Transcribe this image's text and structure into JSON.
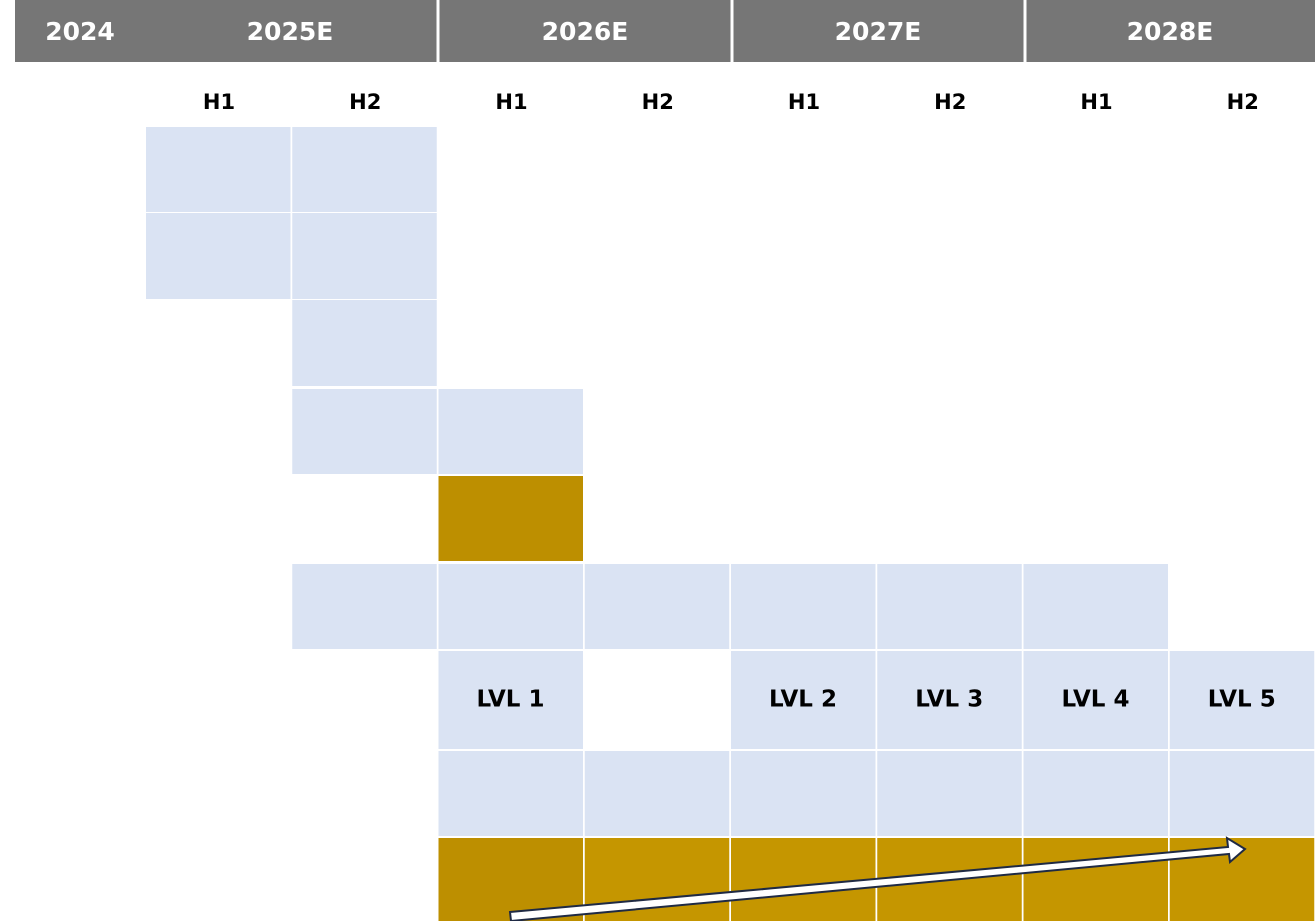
{
  "header": {
    "years": [
      "2024",
      "2025E",
      "2026E",
      "2027E",
      "2028E"
    ]
  },
  "halves": [
    "H1",
    "H2",
    "H1",
    "H2",
    "H1",
    "H2",
    "H1",
    "H2"
  ],
  "levels": [
    "LVL 1",
    "LVL 2",
    "LVL 3",
    "LVL 4",
    "LVL 5"
  ]
}
